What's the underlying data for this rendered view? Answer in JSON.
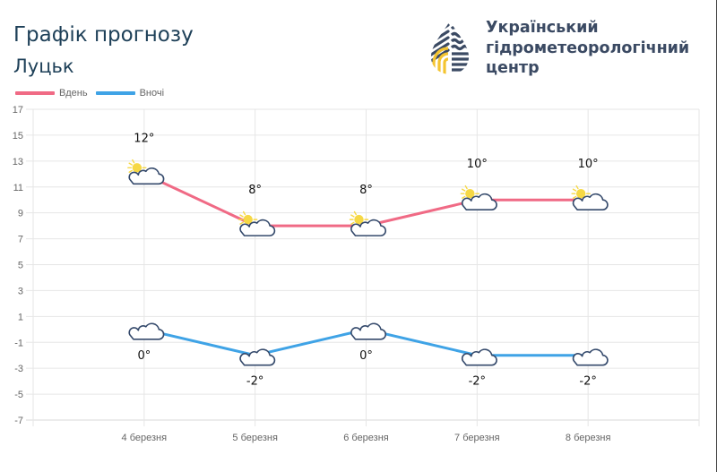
{
  "header": {
    "title": "Графік прогнозу",
    "city": "Луцьк"
  },
  "organization": {
    "name_line1": "Український",
    "name_line2": "гідрометеорологічний",
    "name_line3": "центр",
    "logo_icon": "water-drop-logo-icon",
    "colors": {
      "navy": "#3b4a63",
      "yellow": "#f4c430"
    }
  },
  "legend": {
    "items": [
      {
        "label": "Вдень",
        "color": "#f06a85"
      },
      {
        "label": "Вночі",
        "color": "#3fa3e6"
      }
    ]
  },
  "chart_data": {
    "type": "line",
    "title": "Графік прогнозу",
    "subtitle": "Луцьк",
    "categories": [
      "4 березня",
      "5 березня",
      "6 березня",
      "7 березня",
      "8 березня"
    ],
    "series": [
      {
        "name": "Вдень",
        "values": [
          12,
          8,
          8,
          10,
          10
        ],
        "labels": [
          "12°",
          "8°",
          "8°",
          "10°",
          "10°"
        ],
        "color": "#f06a85",
        "icon": "partly-sunny-icon"
      },
      {
        "name": "Вночі",
        "values": [
          0,
          -2,
          0,
          -2,
          -2
        ],
        "labels": [
          "0°",
          "-2°",
          "0°",
          "-2°",
          "-2°"
        ],
        "color": "#3fa3e6",
        "icon": "partly-cloudy-night-icon"
      }
    ],
    "xlabel": "",
    "ylabel": "",
    "ylim": [
      -7,
      17
    ],
    "yticks": [
      "17",
      "15",
      "13",
      "11",
      "9",
      "7",
      "5",
      "3",
      "1",
      "-1",
      "-3",
      "-5",
      "-7"
    ],
    "grid": true,
    "legend_position": "top-left"
  }
}
